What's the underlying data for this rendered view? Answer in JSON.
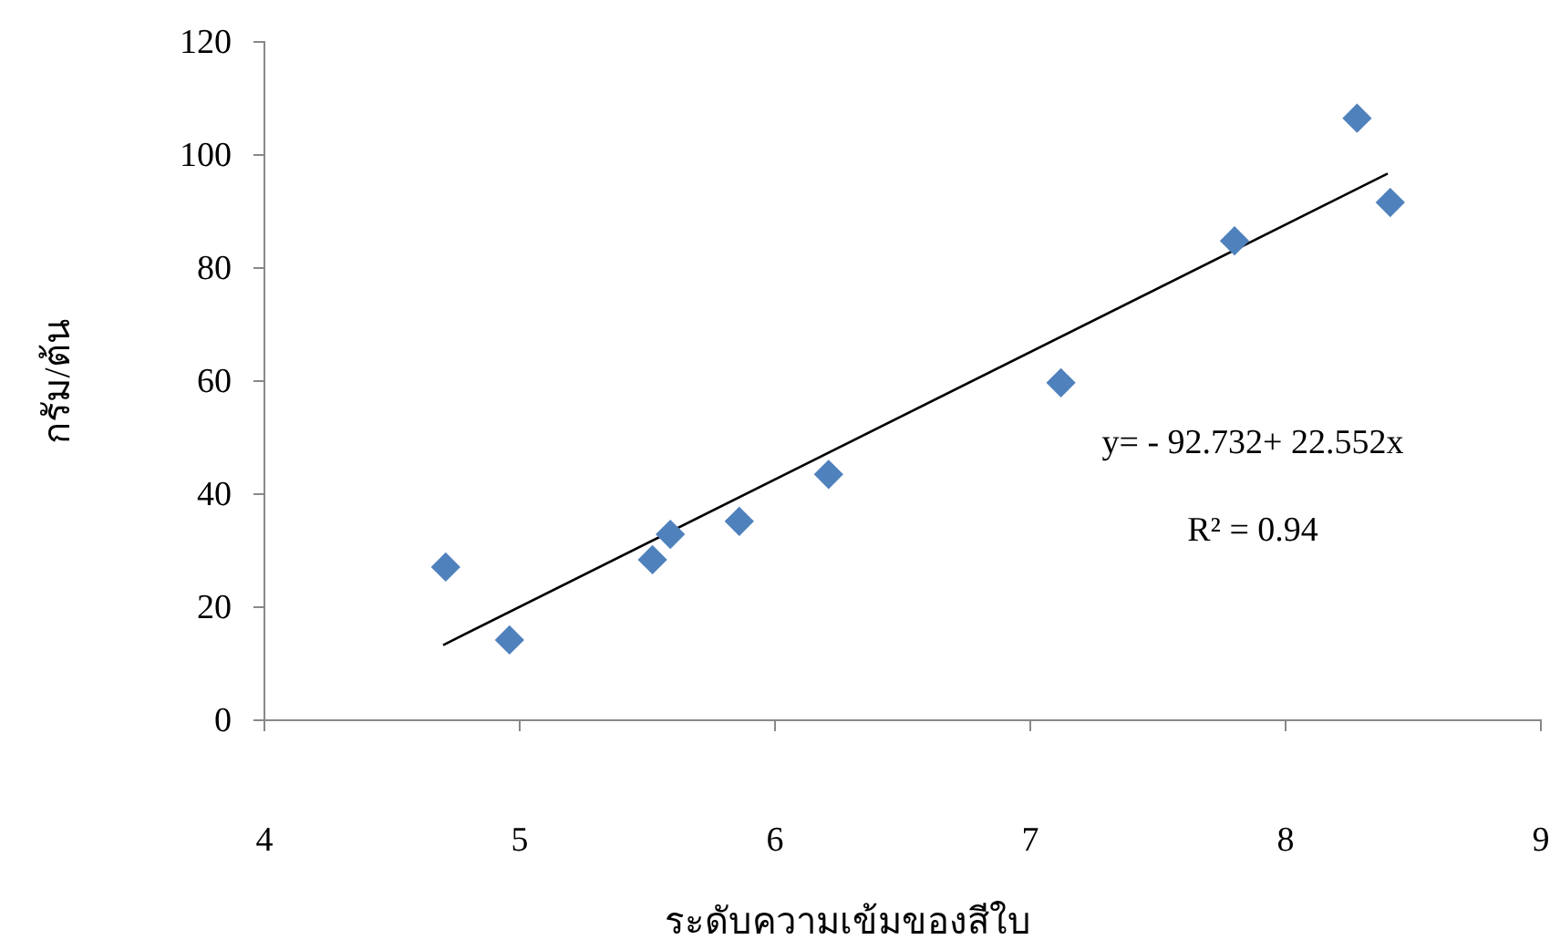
{
  "chart_data": {
    "type": "scatter",
    "xlabel": "ระดับความเข้มของสีใบ",
    "ylabel": "กรัม/ต้น",
    "xlim": [
      4,
      9
    ],
    "xticks": [
      4,
      5,
      6,
      7,
      8,
      9
    ],
    "ylim": [
      0,
      120
    ],
    "yticks": [
      0,
      20,
      40,
      60,
      80,
      100,
      120
    ],
    "grid": false,
    "series": [
      {
        "marker": "diamond",
        "color": "#4f81bd",
        "x": [
          4.71,
          4.96,
          5.52,
          5.59,
          5.86,
          6.21,
          7.12,
          7.8,
          8.28,
          8.41
        ],
        "values": [
          27.1,
          14.2,
          28.4,
          32.9,
          35.2,
          43.5,
          59.7,
          84.8,
          106.5,
          91.6
        ]
      },
      {
        "type": "line",
        "marker": "none",
        "color": "#000000",
        "x": [
          4.7,
          8.4
        ],
        "values": [
          13.3,
          96.7
        ]
      }
    ],
    "annotations": [
      "y= - 92.732+ 22.552x",
      "R² = 0.94"
    ]
  }
}
